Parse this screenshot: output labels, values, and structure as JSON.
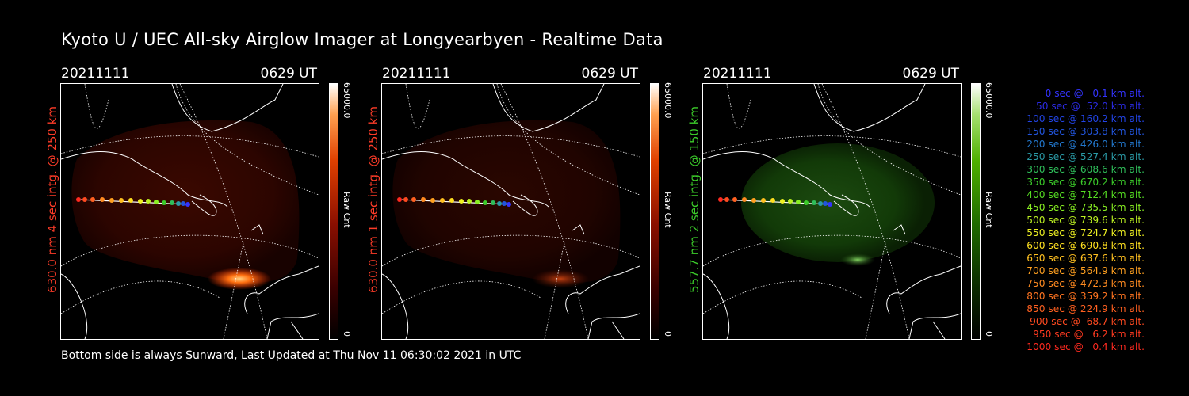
{
  "title": "Kyoto U / UEC All-sky Airglow Imager at Longyearbyen - Realtime Data",
  "footer": "Bottom side is always Sunward, Last Updated at Thu Nov 11 06:30:02 2021 in UTC",
  "panels": [
    {
      "date": "20211111",
      "time": "0629 UT",
      "side_label": "630.0 nm 4 sec intg. @ 250 km",
      "side_color": "#ff3c28",
      "cbar_max": "65000.0",
      "cbar_min": "0",
      "cbar_unit": "Raw Cnt",
      "palette": "red"
    },
    {
      "date": "20211111",
      "time": "0629 UT",
      "side_label": "630.0 nm 1 sec intg. @ 250 km",
      "side_color": "#ff3c28",
      "cbar_max": "65000.0",
      "cbar_min": "0",
      "cbar_unit": "Raw Cnt",
      "palette": "red"
    },
    {
      "date": "20211111",
      "time": "0629 UT",
      "side_label": "557.7 nm 2 sec intg. @ 150 km",
      "side_color": "#3ccc2a",
      "cbar_max": "65000.0",
      "cbar_min": "0",
      "cbar_unit": "Raw Cnt",
      "palette": "green"
    }
  ],
  "legend": [
    {
      "text": "0 sec @   0.1 km alt.",
      "color": "#3333ff"
    },
    {
      "text": "50 sec @  52.0 km alt.",
      "color": "#2a2ae0"
    },
    {
      "text": "100 sec @ 160.2 km alt.",
      "color": "#2244e6"
    },
    {
      "text": "150 sec @ 303.8 km alt.",
      "color": "#2255dd"
    },
    {
      "text": "200 sec @ 426.0 km alt.",
      "color": "#2277cc"
    },
    {
      "text": "250 sec @ 527.4 km alt.",
      "color": "#2a9aa6"
    },
    {
      "text": "300 sec @ 608.6 km alt.",
      "color": "#2fbe5a"
    },
    {
      "text": "350 sec @ 670.2 km alt.",
      "color": "#3ccc2a"
    },
    {
      "text": "400 sec @ 712.4 km alt.",
      "color": "#55dd22"
    },
    {
      "text": "450 sec @ 735.5 km alt.",
      "color": "#88ee22"
    },
    {
      "text": "500 sec @ 739.6 km alt.",
      "color": "#bbf022"
    },
    {
      "text": "550 sec @ 724.7 km alt.",
      "color": "#eef022"
    },
    {
      "text": "600 sec @ 690.8 km alt.",
      "color": "#ffe020"
    },
    {
      "text": "650 sec @ 637.6 km alt.",
      "color": "#ffc020"
    },
    {
      "text": "700 sec @ 564.9 km alt.",
      "color": "#ffa020"
    },
    {
      "text": "750 sec @ 472.3 km alt.",
      "color": "#ff8a20"
    },
    {
      "text": "800 sec @ 359.2 km alt.",
      "color": "#ff7420"
    },
    {
      "text": "850 sec @ 224.9 km alt.",
      "color": "#ff6020"
    },
    {
      "text": "900 sec @  68.7 km alt.",
      "color": "#ff4a20"
    },
    {
      "text": "950 sec @   6.2 km alt.",
      "color": "#ff3a20"
    },
    {
      "text": "1000 sec @   0.4 km alt.",
      "color": "#ff2a20"
    }
  ]
}
